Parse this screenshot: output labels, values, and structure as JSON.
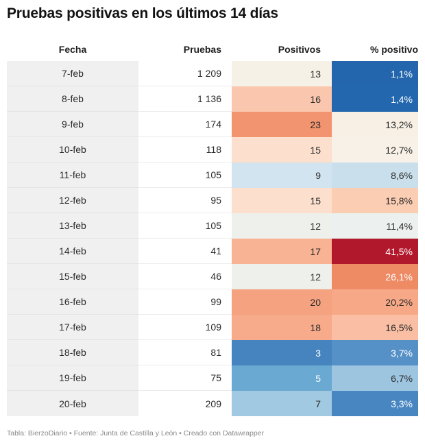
{
  "title": "Pruebas positivas en los últimos 14 días",
  "chart_data": {
    "type": "table",
    "columns": [
      "Fecha",
      "Pruebas",
      "Positivos",
      "% positivo"
    ],
    "rows": [
      {
        "fecha": "7-feb",
        "pruebas": "1 209",
        "positivos": "13",
        "pct": "1,1%",
        "pos_color": "#f6f1e6",
        "pct_color": "#2366ad",
        "pct_text": "#ffffff",
        "pos_text": "#2a2a2a"
      },
      {
        "fecha": "8-feb",
        "pruebas": "1 136",
        "positivos": "16",
        "pct": "1,4%",
        "pos_color": "#fac6ad",
        "pct_color": "#2367ae",
        "pct_text": "#ffffff",
        "pos_text": "#2a2a2a"
      },
      {
        "fecha": "9-feb",
        "pruebas": "174",
        "positivos": "23",
        "pct": "13,2%",
        "pos_color": "#f29470",
        "pct_color": "#f8f0e5",
        "pct_text": "#2a2a2a",
        "pos_text": "#2a2a2a"
      },
      {
        "fecha": "10-feb",
        "pruebas": "118",
        "positivos": "15",
        "pct": "12,7%",
        "pos_color": "#fcdfcc",
        "pct_color": "#f7f1e7",
        "pct_text": "#2a2a2a",
        "pos_text": "#2a2a2a"
      },
      {
        "fecha": "11-feb",
        "pruebas": "105",
        "positivos": "9",
        "pct": "8,6%",
        "pos_color": "#d1e4ef",
        "pct_color": "#c9e0ec",
        "pct_text": "#2a2a2a",
        "pos_text": "#2a2a2a"
      },
      {
        "fecha": "12-feb",
        "pruebas": "95",
        "positivos": "15",
        "pct": "15,8%",
        "pos_color": "#fcdfcc",
        "pct_color": "#fbcdb2",
        "pct_text": "#2a2a2a",
        "pos_text": "#2a2a2a"
      },
      {
        "fecha": "13-feb",
        "pruebas": "105",
        "positivos": "12",
        "pct": "11,4%",
        "pos_color": "#eef0ec",
        "pct_color": "#ecf0ee",
        "pct_text": "#2a2a2a",
        "pos_text": "#2a2a2a"
      },
      {
        "fecha": "14-feb",
        "pruebas": "41",
        "positivos": "17",
        "pct": "41,5%",
        "pos_color": "#f8b294",
        "pct_color": "#b2182b",
        "pct_text": "#ffffff",
        "pos_text": "#2a2a2a"
      },
      {
        "fecha": "15-feb",
        "pruebas": "46",
        "positivos": "12",
        "pct": "26,1%",
        "pos_color": "#eef0ec",
        "pct_color": "#ee8a64",
        "pct_text": "#ffffff",
        "pos_text": "#2a2a2a"
      },
      {
        "fecha": "16-feb",
        "pruebas": "99",
        "positivos": "20",
        "pct": "20,2%",
        "pos_color": "#f4a280",
        "pct_color": "#f6a887",
        "pct_text": "#2a2a2a",
        "pos_text": "#2a2a2a"
      },
      {
        "fecha": "17-feb",
        "pruebas": "109",
        "positivos": "18",
        "pct": "16,5%",
        "pos_color": "#f7ab8b",
        "pct_color": "#f9bea3",
        "pct_text": "#2a2a2a",
        "pos_text": "#2a2a2a"
      },
      {
        "fecha": "18-feb",
        "pruebas": "81",
        "positivos": "3",
        "pct": "3,7%",
        "pos_color": "#4684c0",
        "pct_color": "#5591c7",
        "pct_text": "#ffffff",
        "pos_text": "#ffffff"
      },
      {
        "fecha": "19-feb",
        "pruebas": "75",
        "positivos": "5",
        "pct": "6,7%",
        "pos_color": "#6aa9d1",
        "pct_color": "#9dc5e0",
        "pct_text": "#2a2a2a",
        "pos_text": "#ffffff"
      },
      {
        "fecha": "20-feb",
        "pruebas": "209",
        "positivos": "7",
        "pct": "3,3%",
        "pos_color": "#a2c9e2",
        "pct_color": "#4886c2",
        "pct_text": "#ffffff",
        "pos_text": "#2a2a2a"
      }
    ]
  },
  "footer": "Tabla: BierzoDiario • Fuente: Junta de Castilla y León • Creado con Datawrapper"
}
